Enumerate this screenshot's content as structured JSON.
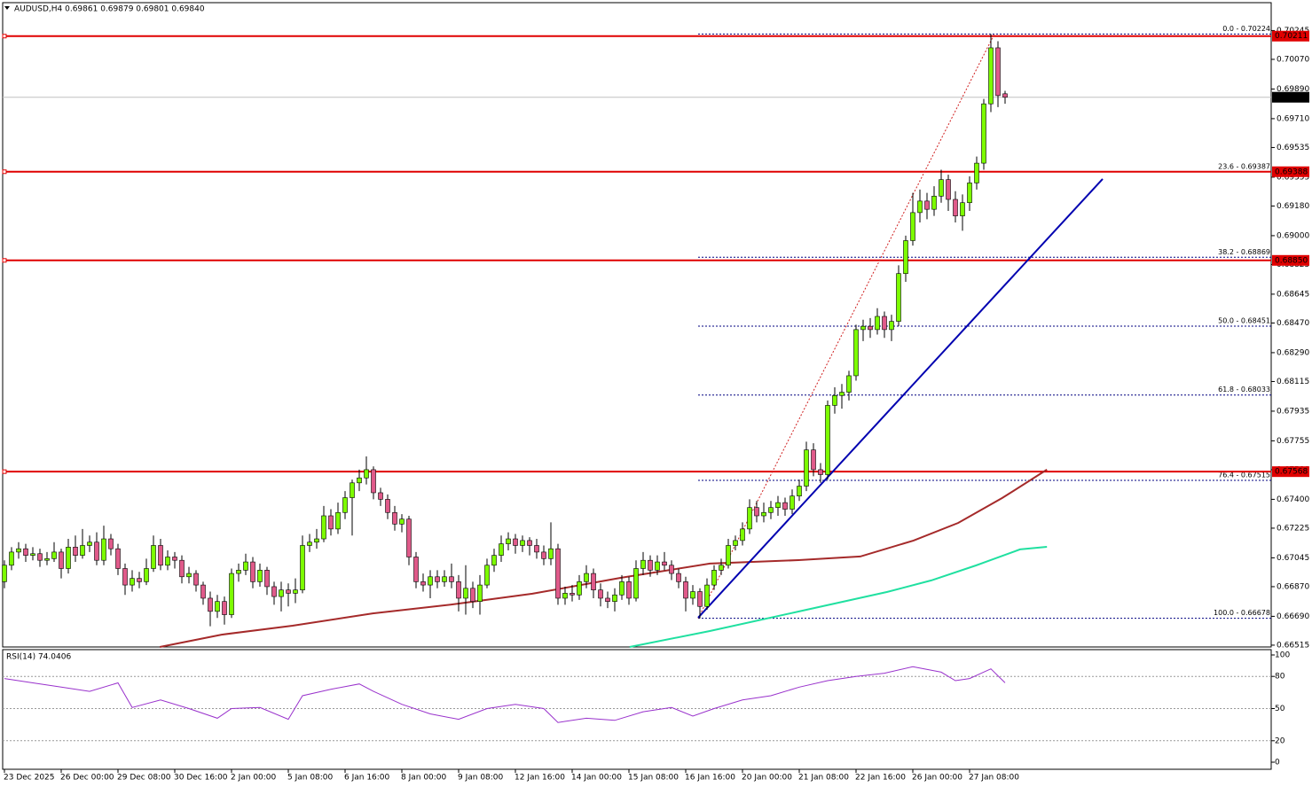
{
  "chart_data": {
    "type": "candlestick",
    "title": "AUDUSD,H4  0.69861 0.69879 0.69801 0.69840",
    "up_color": "#7cfc00",
    "down_color": "#e05a8a",
    "ylim": [
      0.66504,
      0.70414
    ],
    "yticks": [
      0.70245,
      {
        "value": 0.7007,
        "label": "0.70070"
      },
      {
        "value": 0.6989,
        "label": "0.69890"
      },
      {
        "value": 0.6971,
        "label": "0.69710"
      },
      0.69535,
      0.69355,
      {
        "value": 0.6918,
        "label": "0.69180"
      },
      {
        "value": 0.69,
        "label": "0.69000"
      },
      0.68825,
      0.68645,
      {
        "value": 0.6847,
        "label": "0.68470"
      },
      {
        "value": 0.6829,
        "label": "0.68290"
      },
      0.68115,
      0.67935,
      0.67755,
      {
        "value": 0.6758,
        "label": "0.67580"
      },
      {
        "value": 0.674,
        "label": "0.67400"
      },
      0.67225,
      0.67045,
      {
        "value": 0.6687,
        "label": "0.66870"
      },
      {
        "value": 0.6669,
        "label": "0.66690"
      },
      0.66515
    ],
    "xlim": [
      -0.625,
      178.5
    ],
    "xticks": [
      {
        "value": 0,
        "label": "23 Dec 2025"
      },
      {
        "value": 8,
        "label": "26 Dec 00:00"
      },
      {
        "value": 16,
        "label": "29 Dec 08:00"
      },
      {
        "value": 24,
        "label": "30 Dec 16:00"
      },
      {
        "value": 32,
        "label": "2 Jan 00:00"
      },
      {
        "value": 40,
        "label": "5 Jan 08:00"
      },
      {
        "value": 48,
        "label": "6 Jan 16:00"
      },
      {
        "value": 56,
        "label": "8 Jan 00:00"
      },
      {
        "value": 64,
        "label": "9 Jan 08:00"
      },
      {
        "value": 72,
        "label": "12 Jan 16:00"
      },
      {
        "value": 80,
        "label": "14 Jan 00:00"
      },
      {
        "value": 88,
        "label": "15 Jan 08:00"
      },
      {
        "value": 96,
        "label": "16 Jan 16:00"
      },
      {
        "value": 104,
        "label": "20 Jan 00:00"
      },
      {
        "value": 112,
        "label": "21 Jan 08:00"
      },
      {
        "value": 120,
        "label": "22 Jan 16:00"
      },
      {
        "value": 128,
        "label": "26 Jan 00:00"
      },
      {
        "value": 136,
        "label": "27 Jan 08:00"
      }
    ],
    "ohlc": [
      [
        0.669,
        0.6703,
        0.6686,
        0.67
      ],
      [
        0.67,
        0.6711,
        0.6697,
        0.6708
      ],
      [
        0.6708,
        0.6714,
        0.6704,
        0.671
      ],
      [
        0.671,
        0.6713,
        0.6702,
        0.6706
      ],
      [
        0.6706,
        0.6711,
        0.6703,
        0.6707
      ],
      [
        0.6707,
        0.671,
        0.6699,
        0.6703
      ],
      [
        0.6703,
        0.6708,
        0.67,
        0.6704
      ],
      [
        0.6704,
        0.6714,
        0.6702,
        0.6708
      ],
      [
        0.6708,
        0.671,
        0.6692,
        0.6698
      ],
      [
        0.6698,
        0.6716,
        0.6695,
        0.6711
      ],
      [
        0.6711,
        0.6718,
        0.6702,
        0.6706
      ],
      [
        0.6706,
        0.6722,
        0.6704,
        0.6712
      ],
      [
        0.6712,
        0.6718,
        0.6708,
        0.6714
      ],
      [
        0.6714,
        0.672,
        0.67,
        0.6703
      ],
      [
        0.6703,
        0.6724,
        0.67,
        0.6716
      ],
      [
        0.6716,
        0.6719,
        0.6706,
        0.671
      ],
      [
        0.671,
        0.6713,
        0.6694,
        0.6698
      ],
      [
        0.6698,
        0.6701,
        0.6682,
        0.6688
      ],
      [
        0.6688,
        0.6697,
        0.6684,
        0.6692
      ],
      [
        0.6692,
        0.6696,
        0.6686,
        0.669
      ],
      [
        0.669,
        0.6704,
        0.6688,
        0.6698
      ],
      [
        0.6698,
        0.6718,
        0.6696,
        0.6712
      ],
      [
        0.6712,
        0.6716,
        0.6697,
        0.67
      ],
      [
        0.67,
        0.6709,
        0.6697,
        0.6705
      ],
      [
        0.6705,
        0.6708,
        0.6698,
        0.6703
      ],
      [
        0.6703,
        0.6706,
        0.6689,
        0.6693
      ],
      [
        0.6693,
        0.6699,
        0.6689,
        0.6695
      ],
      [
        0.6695,
        0.6697,
        0.6684,
        0.6688
      ],
      [
        0.6688,
        0.669,
        0.6676,
        0.668
      ],
      [
        0.668,
        0.6684,
        0.6663,
        0.6672
      ],
      [
        0.6672,
        0.6682,
        0.6668,
        0.6678
      ],
      [
        0.6678,
        0.6681,
        0.6664,
        0.667
      ],
      [
        0.667,
        0.6698,
        0.6668,
        0.6695
      ],
      [
        0.6695,
        0.6701,
        0.669,
        0.6697
      ],
      [
        0.6697,
        0.6707,
        0.6694,
        0.6702
      ],
      [
        0.6702,
        0.6705,
        0.6686,
        0.669
      ],
      [
        0.669,
        0.6701,
        0.6687,
        0.6697
      ],
      [
        0.6697,
        0.6699,
        0.6682,
        0.6687
      ],
      [
        0.6687,
        0.669,
        0.6676,
        0.6681
      ],
      [
        0.6681,
        0.669,
        0.6672,
        0.6685
      ],
      [
        0.6685,
        0.6689,
        0.6675,
        0.6683
      ],
      [
        0.6683,
        0.6692,
        0.6677,
        0.6685
      ],
      [
        0.6685,
        0.6718,
        0.6683,
        0.6712
      ],
      [
        0.6712,
        0.6719,
        0.6708,
        0.6714
      ],
      [
        0.6714,
        0.6722,
        0.671,
        0.6716
      ],
      [
        0.6716,
        0.6736,
        0.6714,
        0.673
      ],
      [
        0.673,
        0.6734,
        0.6718,
        0.6722
      ],
      [
        0.6722,
        0.6738,
        0.6719,
        0.6732
      ],
      [
        0.6732,
        0.6745,
        0.6728,
        0.6741
      ],
      [
        0.6741,
        0.6752,
        0.6718,
        0.675
      ],
      [
        0.675,
        0.6758,
        0.6745,
        0.6753
      ],
      [
        0.6753,
        0.6766,
        0.6749,
        0.6758
      ],
      [
        0.6758,
        0.676,
        0.674,
        0.6744
      ],
      [
        0.6744,
        0.6747,
        0.6736,
        0.674
      ],
      [
        0.674,
        0.6743,
        0.6728,
        0.6732
      ],
      [
        0.6732,
        0.6736,
        0.6721,
        0.6725
      ],
      [
        0.6725,
        0.6731,
        0.672,
        0.6728
      ],
      [
        0.6728,
        0.673,
        0.67,
        0.6705
      ],
      [
        0.6705,
        0.6708,
        0.6686,
        0.669
      ],
      [
        0.669,
        0.6695,
        0.6684,
        0.6688
      ],
      [
        0.6688,
        0.6697,
        0.668,
        0.6693
      ],
      [
        0.6693,
        0.6697,
        0.6686,
        0.669
      ],
      [
        0.669,
        0.6697,
        0.6687,
        0.6693
      ],
      [
        0.6693,
        0.6701,
        0.6686,
        0.669
      ],
      [
        0.669,
        0.6694,
        0.6672,
        0.668
      ],
      [
        0.668,
        0.67,
        0.667,
        0.6686
      ],
      [
        0.6686,
        0.669,
        0.6674,
        0.6678
      ],
      [
        0.6678,
        0.6694,
        0.667,
        0.6688
      ],
      [
        0.6688,
        0.6704,
        0.6686,
        0.67
      ],
      [
        0.67,
        0.671,
        0.6696,
        0.6706
      ],
      [
        0.6706,
        0.6718,
        0.6702,
        0.6713
      ],
      [
        0.6713,
        0.672,
        0.6709,
        0.6716
      ],
      [
        0.6716,
        0.6719,
        0.6707,
        0.6712
      ],
      [
        0.6712,
        0.6718,
        0.6708,
        0.6715
      ],
      [
        0.6715,
        0.6717,
        0.6706,
        0.6712
      ],
      [
        0.6712,
        0.6716,
        0.6704,
        0.6708
      ],
      [
        0.6708,
        0.6712,
        0.67,
        0.6704
      ],
      [
        0.6704,
        0.6726,
        0.67,
        0.671
      ],
      [
        0.671,
        0.6713,
        0.6676,
        0.668
      ],
      [
        0.668,
        0.6687,
        0.6676,
        0.6683
      ],
      [
        0.6683,
        0.6688,
        0.6678,
        0.6682
      ],
      [
        0.6682,
        0.6694,
        0.6679,
        0.669
      ],
      [
        0.669,
        0.67,
        0.6686,
        0.6695
      ],
      [
        0.6695,
        0.6698,
        0.668,
        0.6685
      ],
      [
        0.6685,
        0.6689,
        0.6675,
        0.668
      ],
      [
        0.668,
        0.6684,
        0.6674,
        0.6678
      ],
      [
        0.6678,
        0.6686,
        0.6672,
        0.6682
      ],
      [
        0.6682,
        0.6694,
        0.6679,
        0.669
      ],
      [
        0.669,
        0.6693,
        0.6676,
        0.668
      ],
      [
        0.668,
        0.6703,
        0.6678,
        0.6698
      ],
      [
        0.6698,
        0.6708,
        0.6694,
        0.6703
      ],
      [
        0.6703,
        0.6706,
        0.6693,
        0.6697
      ],
      [
        0.6697,
        0.6706,
        0.6694,
        0.6702
      ],
      [
        0.6702,
        0.6708,
        0.6697,
        0.67
      ],
      [
        0.67,
        0.6703,
        0.6691,
        0.6695
      ],
      [
        0.6695,
        0.6698,
        0.6686,
        0.669
      ],
      [
        0.669,
        0.6693,
        0.6672,
        0.668
      ],
      [
        0.668,
        0.6688,
        0.6676,
        0.6684
      ],
      [
        0.6684,
        0.6686,
        0.66678,
        0.6675
      ],
      [
        0.6675,
        0.6692,
        0.6673,
        0.6688
      ],
      [
        0.6688,
        0.67,
        0.6685,
        0.6697
      ],
      [
        0.6697,
        0.6704,
        0.6694,
        0.67
      ],
      [
        0.67,
        0.6716,
        0.6698,
        0.6712
      ],
      [
        0.6712,
        0.6718,
        0.6709,
        0.6715
      ],
      [
        0.6715,
        0.6726,
        0.6712,
        0.6722
      ],
      [
        0.6722,
        0.674,
        0.6719,
        0.6735
      ],
      [
        0.6735,
        0.6739,
        0.6726,
        0.673
      ],
      [
        0.673,
        0.6738,
        0.6726,
        0.6732
      ],
      [
        0.6732,
        0.6739,
        0.6728,
        0.6735
      ],
      [
        0.6735,
        0.6742,
        0.673,
        0.6738
      ],
      [
        0.6738,
        0.6741,
        0.673,
        0.6734
      ],
      [
        0.6734,
        0.6746,
        0.6731,
        0.6742
      ],
      [
        0.6742,
        0.6752,
        0.6739,
        0.6748
      ],
      [
        0.6748,
        0.6775,
        0.6745,
        0.677
      ],
      [
        0.677,
        0.6774,
        0.6754,
        0.6758
      ],
      [
        0.6758,
        0.6762,
        0.675,
        0.6755
      ],
      [
        0.6755,
        0.68,
        0.6752,
        0.6797
      ],
      [
        0.6797,
        0.6808,
        0.6792,
        0.6803
      ],
      [
        0.6803,
        0.681,
        0.6795,
        0.6805
      ],
      [
        0.6805,
        0.6818,
        0.68,
        0.6815
      ],
      [
        0.6815,
        0.6846,
        0.6812,
        0.6843
      ],
      [
        0.6843,
        0.6849,
        0.6836,
        0.6845
      ],
      [
        0.6845,
        0.685,
        0.6838,
        0.6843
      ],
      [
        0.6843,
        0.6856,
        0.684,
        0.6851
      ],
      [
        0.6851,
        0.6854,
        0.6838,
        0.6843
      ],
      [
        0.6843,
        0.6852,
        0.6836,
        0.6848
      ],
      [
        0.6848,
        0.6882,
        0.6845,
        0.6877
      ],
      [
        0.6877,
        0.69,
        0.6872,
        0.6897
      ],
      [
        0.6897,
        0.6926,
        0.6894,
        0.6914
      ],
      [
        0.6914,
        0.6928,
        0.6908,
        0.6921
      ],
      [
        0.6921,
        0.6926,
        0.691,
        0.6916
      ],
      [
        0.6916,
        0.693,
        0.6912,
        0.6924
      ],
      [
        0.6924,
        0.694,
        0.692,
        0.6934
      ],
      [
        0.6934,
        0.6937,
        0.6915,
        0.6922
      ],
      [
        0.6922,
        0.6927,
        0.6908,
        0.6912
      ],
      [
        0.6912,
        0.6925,
        0.6903,
        0.692
      ],
      [
        0.692,
        0.6936,
        0.6915,
        0.6932
      ],
      [
        0.6932,
        0.6948,
        0.6928,
        0.6944
      ],
      [
        0.6944,
        0.6983,
        0.694,
        0.698
      ],
      [
        0.698,
        0.70224,
        0.6975,
        0.7014
      ],
      [
        0.7014,
        0.7018,
        0.6978,
        0.6985
      ],
      [
        0.69861,
        0.69879,
        0.69801,
        0.6984
      ]
    ],
    "moving_averages": [
      {
        "color": "#a52a2a",
        "x": [
          21.9,
          30.6,
          40.6,
          51.9,
          63.1,
          74.4,
          86.9,
          99.4,
          111.9,
          120.6,
          128.1,
          134.4,
          140.6,
          146.9
        ],
        "values": [
          0.66504,
          0.66579,
          0.66633,
          0.66708,
          0.66762,
          0.66827,
          0.66924,
          0.6701,
          0.67031,
          0.67053,
          0.6715,
          0.67257,
          0.67408,
          0.6758
        ]
      },
      {
        "color": "#20e0a0",
        "x": [
          88.1,
          99.4,
          111.9,
          124.4,
          130.6,
          136.9,
          143.1,
          146.9
        ],
        "values": [
          0.66504,
          0.66601,
          0.66719,
          0.66838,
          0.66908,
          0.66999,
          0.67096,
          0.67112
        ]
      }
    ],
    "trend_line": {
      "color": "#0000b0",
      "x": [
        97.75,
        154.75
      ],
      "values": [
        0.66682,
        0.69344
      ]
    },
    "fib_line": {
      "color": "#d02020",
      "x": [
        97.75,
        139.5
      ],
      "values": [
        0.66678,
        0.70224
      ]
    },
    "levels": [
      {
        "value": 0.70211,
        "label": "0.70211"
      },
      {
        "value": 0.69388,
        "label": "0.69388"
      },
      {
        "value": 0.6885,
        "label": "0.68850"
      },
      {
        "value": 0.67568,
        "label": "0.67568"
      }
    ],
    "level_color": "#e00000",
    "fib_levels": [
      {
        "value": 0.70224,
        "label": "0.0 - 0.70224"
      },
      {
        "value": 0.69387,
        "label": "23.6 - 0.69387"
      },
      {
        "value": 0.68869,
        "label": "38.2 - 0.68869"
      },
      {
        "value": 0.68451,
        "label": "50.0 - 0.68451"
      },
      {
        "value": 0.68033,
        "label": "61.8 - 0.68033"
      },
      {
        "value": 0.67515,
        "label": "76.4 - 0.67515"
      },
      {
        "value": 0.66678,
        "label": "100.0 - 0.66678"
      }
    ],
    "fib_color": "#000080",
    "current_price": {
      "value": 0.6984,
      "label": "0.69840"
    },
    "rsi": {
      "title": "RSI(14) 74.0406",
      "color": "#9932cc",
      "ylim": [
        0,
        100
      ],
      "yticks": [
        100,
        80,
        50,
        20,
        0
      ],
      "levels": [
        20,
        50,
        80
      ],
      "x": [
        0,
        4,
        8,
        12,
        16,
        18,
        22,
        26,
        30,
        32,
        36,
        40,
        42,
        46,
        50,
        52,
        56,
        60,
        64,
        68,
        72,
        76,
        78,
        82,
        86,
        90,
        94,
        97,
        100,
        104,
        108,
        112,
        116,
        120,
        124,
        128,
        132,
        134,
        136,
        139,
        141
      ],
      "values": [
        78,
        74,
        70,
        66,
        74,
        51,
        58,
        50,
        41,
        50,
        51,
        40,
        62,
        68,
        73,
        66,
        54,
        45,
        40,
        50,
        54,
        50,
        37,
        41,
        39,
        47,
        51,
        43,
        50,
        58,
        62,
        70,
        76,
        80,
        83,
        89,
        84,
        76,
        78,
        87,
        74.04
      ]
    }
  }
}
